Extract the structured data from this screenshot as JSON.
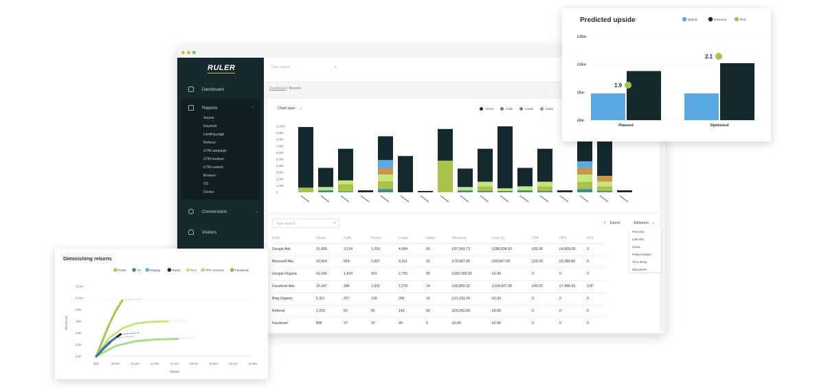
{
  "app": {
    "logo": "RULER"
  },
  "colors": {
    "sidebar": "#17292e",
    "dark_teal": "#13292d",
    "lime": "#a9c34a",
    "light_green": "#c5e67a",
    "blue": "#5aa9e2",
    "teal": "#3f8b93",
    "orange": "#c7964a",
    "mint": "#7fc9a4"
  },
  "sidebar": {
    "items": [
      {
        "label": "Dashboard",
        "icon": "grid-icon"
      },
      {
        "label": "Reports",
        "icon": "document-icon"
      },
      {
        "label": "Conversions",
        "icon": "pie-icon"
      },
      {
        "label": "Visitors",
        "icon": "user-icon"
      }
    ],
    "report_sub": [
      "Source",
      "Keyword",
      "Landing page",
      "Referrer",
      "UTM campaign",
      "UTM medium",
      "UTM content",
      "Browser",
      "OS",
      "Device"
    ]
  },
  "topbar": {
    "search_placeholder": "Type search..."
  },
  "breadcrumb": {
    "root": "Dashboard",
    "sep": "/",
    "current": "Reports"
  },
  "report_chart": {
    "chart_type_label": "Chart type",
    "legend": [
      "Clicks",
      "Calls",
      "Leads",
      "Sales"
    ]
  },
  "table": {
    "search_placeholder": "Type search...",
    "export_label": "Export",
    "attribution_label": "Attribution",
    "attribution_options": [
      "First click",
      "Last click",
      "Linear",
      "Position based",
      "Time decay",
      "Data driven"
    ],
    "headers": [
      "Field",
      "Clicks",
      "Calls",
      "Forms",
      "Leads",
      "Sales",
      "Revenue",
      "Cost (£)",
      "CPA",
      "CPS",
      "ROI"
    ],
    "rows": [
      [
        "Google Ads",
        "31,895",
        "3,134",
        "1,250",
        "4,684",
        "60",
        "£87,369.72",
        "£288,834.93",
        "£82.90",
        "£4,809.58",
        "0"
      ],
      [
        "Microsoft Ads",
        "10,904",
        "554",
        "2,607",
        "3,161",
        "10",
        "£75,687.80",
        "£93,847.99",
        "£29.69",
        "£9,384.80",
        "0"
      ],
      [
        "Google Organic",
        "41,045",
        "1,824",
        "931",
        "2,755",
        "35",
        "£292,992.50",
        "£0.00",
        "0",
        "0",
        "0"
      ],
      [
        "Facebook Ads",
        "15,347",
        "346",
        "1,932",
        "2,278",
        "14",
        "£90,859.32",
        "£104,837.98",
        "£46.02",
        "£7,488.43",
        "0.87"
      ],
      [
        "Bing Organic",
        "5,311",
        "257",
        "139",
        "396",
        "16",
        "£21,319.20",
        "£0.00",
        "0",
        "0",
        "0"
      ],
      [
        "Referral",
        "2,223",
        "60",
        "82",
        "142",
        "43",
        "£25,092.00",
        "£0.00",
        "0",
        "0",
        "0"
      ],
      [
        "Facebook",
        "895",
        "27",
        "22",
        "49",
        "0",
        "£0.00",
        "£0.00",
        "0",
        "0",
        "0"
      ]
    ]
  },
  "chart_data": [
    {
      "type": "bar",
      "stacked": true,
      "y_ticks": [
        "10,000",
        "9,000",
        "8,000",
        "7,000",
        "6,000",
        "5,000",
        "4,000",
        "3,000",
        "2,000",
        "1,000",
        "0"
      ],
      "ylim": [
        0,
        10000
      ],
      "series_colors": [
        "#13292d",
        "#5aa9e2",
        "#c7964a",
        "#c5e67a",
        "#a9c34a",
        "#3f8b93"
      ],
      "stacks": [
        [
          9200,
          0,
          0,
          0,
          700,
          0
        ],
        [
          2900,
          0,
          0,
          500,
          0,
          300
        ],
        [
          4800,
          0,
          0,
          600,
          1100,
          100
        ],
        [
          300,
          0,
          0,
          0,
          0,
          0
        ],
        [
          3600,
          1200,
          1000,
          1000,
          1200,
          500
        ],
        [
          5500,
          0,
          0,
          0,
          0,
          0
        ],
        [
          200,
          0,
          0,
          0,
          0,
          0
        ],
        [
          4800,
          0,
          0,
          0,
          4800,
          0
        ],
        [
          2800,
          0,
          0,
          500,
          0,
          300
        ],
        [
          5000,
          0,
          0,
          700,
          700,
          200
        ],
        [
          9400,
          0,
          0,
          400,
          0,
          200
        ],
        [
          2800,
          0,
          0,
          600,
          0,
          300
        ],
        [
          5000,
          0,
          0,
          700,
          700,
          200
        ],
        [
          300,
          0,
          0,
          0,
          0,
          0
        ],
        [
          4600,
          1000,
          1000,
          1100,
          1100,
          500
        ],
        [
          5200,
          0,
          900,
          700,
          700,
          200
        ],
        [
          300,
          0,
          0,
          0,
          0,
          0
        ]
      ]
    },
    {
      "type": "bar",
      "title": "Predicted upside",
      "legend": [
        "Spend",
        "Revenue",
        "ROI"
      ],
      "categories": [
        "Planned",
        "Optimised"
      ],
      "y_ticks": [
        "£15m",
        "£10m",
        "£5m",
        "£0m"
      ],
      "ylim": [
        0,
        15
      ],
      "series": [
        {
          "name": "Spend",
          "values": [
            4.8,
            4.8
          ],
          "color": "#5aa9e2"
        },
        {
          "name": "Revenue",
          "values": [
            8.8,
            10.2
          ],
          "color": "#13292d"
        }
      ],
      "roi": {
        "name": "ROI",
        "values": [
          1.9,
          2.1
        ],
        "labels": [
          "1.9",
          "2.1"
        ],
        "color": "#a9c34a"
      }
    },
    {
      "type": "line",
      "title": "Diminishing returns",
      "legend": [
        {
          "name": "Press",
          "color": "#a9c34a"
        },
        {
          "name": "TV",
          "color": "#3f7ea8"
        },
        {
          "name": "Display",
          "color": "#5aa9e2"
        },
        {
          "name": "Radio",
          "color": "#13292d"
        },
        {
          "name": "PLA",
          "color": "#c5e67a"
        },
        {
          "name": "PPC Generic",
          "color": "#a8dc88"
        },
        {
          "name": "Facebook",
          "color": "#c7964a"
        }
      ],
      "xlabel": "SPEND",
      "ylabel": "REVENUE",
      "x_ticks": [
        "£0m",
        "£0.6m",
        "£1.2m",
        "£1.8m",
        "£2.4m",
        "£3.0m",
        "£3.6m",
        "£4.2m",
        "£4.8m"
      ],
      "y_ticks": [
        "£12m",
        "£10m",
        "£8m",
        "£6m",
        "£4m",
        "£2m",
        "£0m"
      ],
      "xlim": [
        0,
        4.8
      ],
      "ylim": [
        0,
        12
      ],
      "curves": [
        {
          "name": "Press",
          "points": [
            [
              0,
              0
            ],
            [
              0.2,
              2.8
            ],
            [
              0.4,
              5.5
            ],
            [
              0.6,
              7.8
            ],
            [
              0.8,
              9.6
            ]
          ],
          "color": "#a9c34a"
        },
        {
          "name": "PLA",
          "points": [
            [
              0,
              0
            ],
            [
              0.4,
              3.2
            ],
            [
              0.8,
              4.8
            ],
            [
              1.2,
              5.6
            ],
            [
              1.6,
              5.9
            ],
            [
              2.2,
              6.0
            ]
          ],
          "color": "#c5e67a"
        },
        {
          "name": "PPC Generic",
          "points": [
            [
              0,
              0
            ],
            [
              0.6,
              1.8
            ],
            [
              1.2,
              2.6
            ],
            [
              1.8,
              2.9
            ],
            [
              2.5,
              3.0
            ]
          ],
          "color": "#a8dc88"
        },
        {
          "name": "Radio",
          "points": [
            [
              0,
              0
            ],
            [
              0.25,
              1.5
            ],
            [
              0.5,
              2.8
            ],
            [
              0.75,
              3.8
            ]
          ],
          "color": "#13292d"
        },
        {
          "name": "TV",
          "points": [
            [
              0,
              0
            ],
            [
              0.2,
              1.3
            ],
            [
              0.4,
              2.4
            ],
            [
              0.6,
              3.2
            ]
          ],
          "color": "#3f7ea8"
        }
      ]
    }
  ]
}
